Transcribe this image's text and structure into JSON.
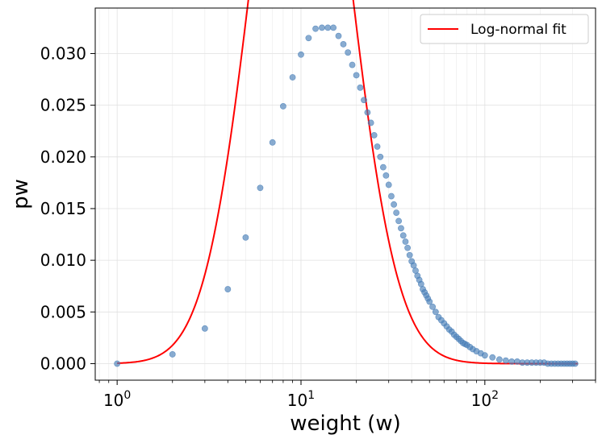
{
  "chart_data": {
    "type": "scatter",
    "xlabel": "weight (w)",
    "ylabel": "pw",
    "xscale": "log",
    "xlim": [
      0.76,
      400
    ],
    "ylim": [
      -0.0016,
      0.0344
    ],
    "grid": true,
    "legend_position": "top-right",
    "colors": {
      "points": "#4a7fb8",
      "fit": "#ff0000"
    },
    "x_ticks": [
      {
        "value": 1,
        "base": "10",
        "exp": "0"
      },
      {
        "value": 10,
        "base": "10",
        "exp": "1"
      },
      {
        "value": 100,
        "base": "10",
        "exp": "2"
      }
    ],
    "y_ticks": [
      {
        "value": 0.0,
        "label": "0.000"
      },
      {
        "value": 0.005,
        "label": "0.005"
      },
      {
        "value": 0.01,
        "label": "0.010"
      },
      {
        "value": 0.015,
        "label": "0.015"
      },
      {
        "value": 0.02,
        "label": "0.020"
      },
      {
        "value": 0.025,
        "label": "0.025"
      },
      {
        "value": 0.03,
        "label": "0.030"
      }
    ],
    "series": [
      {
        "kind": "scatter",
        "x": [
          1,
          2,
          3,
          4,
          5,
          6,
          7,
          8,
          9,
          10,
          11,
          12,
          13,
          14,
          15,
          16,
          17,
          18,
          19,
          20,
          21,
          22,
          23,
          24,
          25,
          26,
          27,
          28,
          29,
          30,
          31,
          32,
          33,
          34,
          35,
          36,
          37,
          38,
          39,
          40,
          41,
          42,
          43,
          44,
          45,
          46,
          47,
          48,
          49,
          50,
          52,
          54,
          56,
          58,
          60,
          62,
          64,
          66,
          68,
          70,
          72,
          74,
          76,
          78,
          80,
          83,
          86,
          90,
          95,
          100,
          110,
          120,
          130,
          140,
          150,
          160,
          170,
          180,
          190,
          200,
          210,
          220,
          230,
          240,
          250,
          260,
          270,
          280,
          290,
          300,
          310
        ],
        "y": [
          0.0,
          0.0009,
          0.0034,
          0.0072,
          0.0122,
          0.017,
          0.0214,
          0.0249,
          0.0277,
          0.0299,
          0.0315,
          0.0324,
          0.0325,
          0.0325,
          0.0325,
          0.0317,
          0.0309,
          0.0301,
          0.0289,
          0.0279,
          0.0267,
          0.0255,
          0.0243,
          0.0233,
          0.0221,
          0.021,
          0.02,
          0.019,
          0.0182,
          0.0173,
          0.0162,
          0.0154,
          0.0146,
          0.0138,
          0.0131,
          0.0124,
          0.0118,
          0.0112,
          0.0105,
          0.0099,
          0.0095,
          0.009,
          0.0085,
          0.0081,
          0.0077,
          0.0072,
          0.0069,
          0.0066,
          0.0063,
          0.006,
          0.0055,
          0.005,
          0.0045,
          0.0042,
          0.0039,
          0.0036,
          0.0033,
          0.0031,
          0.0028,
          0.0026,
          0.0024,
          0.0022,
          0.002,
          0.0019,
          0.0018,
          0.0016,
          0.0014,
          0.0012,
          0.001,
          0.0008,
          0.0006,
          0.0004,
          0.0003,
          0.0002,
          0.0002,
          0.0001,
          0.0001,
          0.0001,
          0.0001,
          0.0001,
          0.0001,
          0.0,
          0.0,
          0.0,
          0.0,
          0.0,
          0.0,
          0.0,
          0.0,
          0.0,
          0.0
        ]
      },
      {
        "kind": "line",
        "name": "Log-normal fit",
        "mu": 2.66,
        "sigma": 0.6,
        "amplitude": 1.15,
        "x_range": [
          1,
          320
        ]
      }
    ]
  }
}
